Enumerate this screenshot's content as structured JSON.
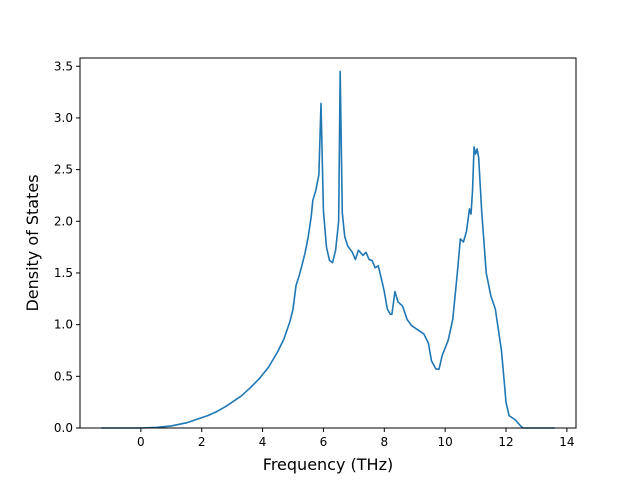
{
  "chart_data": {
    "type": "line",
    "title": "",
    "xlabel": "Frequency (THz)",
    "ylabel": "Density of States",
    "xlim": [
      -2.0,
      14.3
    ],
    "ylim": [
      0,
      3.58
    ],
    "xticks": [
      0,
      2,
      4,
      6,
      8,
      10,
      12,
      14
    ],
    "yticks": [
      0.0,
      0.5,
      1.0,
      1.5,
      2.0,
      2.5,
      3.0,
      3.5
    ],
    "xtick_labels": [
      "0",
      "2",
      "4",
      "6",
      "8",
      "10",
      "12",
      "14"
    ],
    "ytick_labels": [
      "0.0",
      "0.5",
      "1.0",
      "1.5",
      "2.0",
      "2.5",
      "3.0",
      "3.5"
    ],
    "grid": false,
    "legend": "none",
    "series": [
      {
        "color": "#1f77b4",
        "points": [
          [
            -1.3,
            0.0
          ],
          [
            -1.0,
            0.0
          ],
          [
            -0.5,
            0.0
          ],
          [
            0.0,
            0.0
          ],
          [
            0.5,
            0.005
          ],
          [
            1.0,
            0.02
          ],
          [
            1.5,
            0.05
          ],
          [
            1.8,
            0.08
          ],
          [
            2.0,
            0.1
          ],
          [
            2.2,
            0.12
          ],
          [
            2.5,
            0.16
          ],
          [
            2.8,
            0.21
          ],
          [
            3.0,
            0.25
          ],
          [
            3.3,
            0.31
          ],
          [
            3.6,
            0.39
          ],
          [
            3.9,
            0.48
          ],
          [
            4.2,
            0.59
          ],
          [
            4.5,
            0.74
          ],
          [
            4.7,
            0.86
          ],
          [
            4.9,
            1.03
          ],
          [
            5.0,
            1.15
          ],
          [
            5.1,
            1.38
          ],
          [
            5.2,
            1.47
          ],
          [
            5.3,
            1.58
          ],
          [
            5.4,
            1.7
          ],
          [
            5.5,
            1.85
          ],
          [
            5.6,
            2.05
          ],
          [
            5.65,
            2.2
          ],
          [
            5.75,
            2.3
          ],
          [
            5.85,
            2.45
          ],
          [
            5.92,
            3.14
          ],
          [
            6.0,
            2.1
          ],
          [
            6.1,
            1.75
          ],
          [
            6.2,
            1.62
          ],
          [
            6.3,
            1.6
          ],
          [
            6.4,
            1.72
          ],
          [
            6.5,
            2.0
          ],
          [
            6.55,
            3.45
          ],
          [
            6.62,
            2.08
          ],
          [
            6.7,
            1.85
          ],
          [
            6.8,
            1.76
          ],
          [
            6.95,
            1.7
          ],
          [
            7.05,
            1.63
          ],
          [
            7.15,
            1.72
          ],
          [
            7.3,
            1.67
          ],
          [
            7.4,
            1.7
          ],
          [
            7.5,
            1.63
          ],
          [
            7.6,
            1.62
          ],
          [
            7.7,
            1.55
          ],
          [
            7.8,
            1.57
          ],
          [
            7.9,
            1.45
          ],
          [
            8.0,
            1.32
          ],
          [
            8.1,
            1.15
          ],
          [
            8.2,
            1.1
          ],
          [
            8.25,
            1.1
          ],
          [
            8.35,
            1.32
          ],
          [
            8.45,
            1.22
          ],
          [
            8.6,
            1.18
          ],
          [
            8.75,
            1.05
          ],
          [
            8.9,
            0.99
          ],
          [
            9.1,
            0.95
          ],
          [
            9.3,
            0.91
          ],
          [
            9.45,
            0.82
          ],
          [
            9.55,
            0.65
          ],
          [
            9.7,
            0.57
          ],
          [
            9.8,
            0.57
          ],
          [
            9.9,
            0.7
          ],
          [
            10.1,
            0.85
          ],
          [
            10.25,
            1.05
          ],
          [
            10.4,
            1.5
          ],
          [
            10.5,
            1.83
          ],
          [
            10.6,
            1.8
          ],
          [
            10.7,
            1.9
          ],
          [
            10.8,
            2.12
          ],
          [
            10.85,
            2.07
          ],
          [
            10.9,
            2.3
          ],
          [
            10.95,
            2.72
          ],
          [
            11.0,
            2.65
          ],
          [
            11.05,
            2.7
          ],
          [
            11.1,
            2.62
          ],
          [
            11.2,
            2.1
          ],
          [
            11.35,
            1.5
          ],
          [
            11.5,
            1.28
          ],
          [
            11.65,
            1.15
          ],
          [
            11.75,
            0.95
          ],
          [
            11.85,
            0.75
          ],
          [
            11.95,
            0.42
          ],
          [
            12.0,
            0.25
          ],
          [
            12.1,
            0.12
          ],
          [
            12.3,
            0.08
          ],
          [
            12.45,
            0.03
          ],
          [
            12.55,
            0.0
          ],
          [
            13.0,
            0.0
          ],
          [
            13.6,
            0.0
          ]
        ]
      }
    ]
  }
}
